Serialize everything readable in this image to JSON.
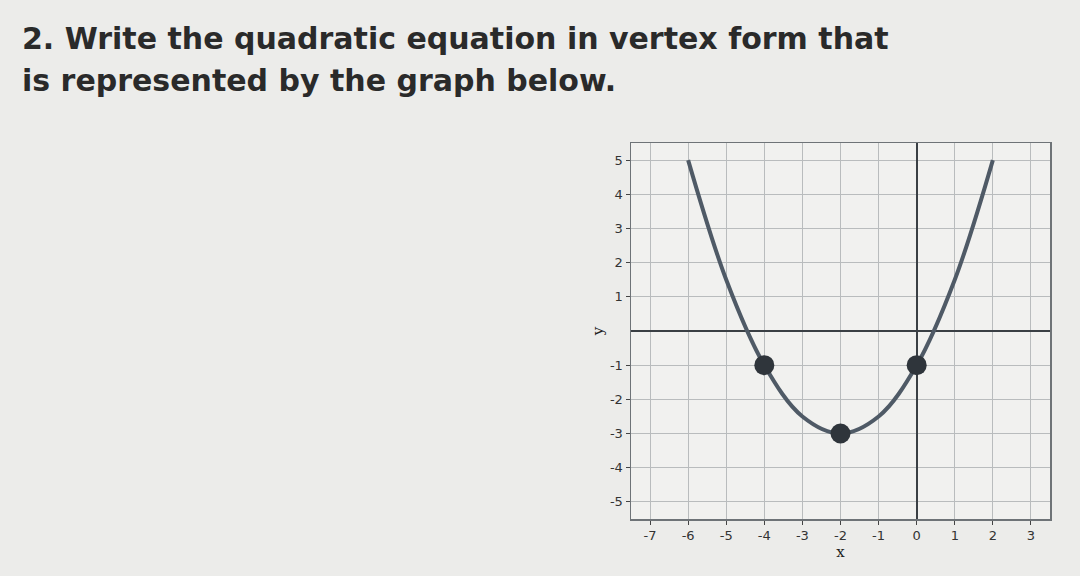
{
  "question": [
    "2. Write the quadratic equation in vertex form that",
    "is represented by the graph below."
  ],
  "chart_data": {
    "type": "line",
    "x_label": "x",
    "y_label": "y",
    "series": [
      {
        "type": "line",
        "color": "#4f5a66",
        "marker": "none",
        "line_style": "solid",
        "x": [
          -6,
          -5,
          -4,
          -3,
          -2,
          -1,
          0,
          1,
          2
        ],
        "values": [
          5,
          1.5,
          -1,
          -2.5,
          -3,
          -2.5,
          -1,
          1.5,
          5
        ]
      },
      {
        "type": "scatter",
        "color": "#2f353b",
        "marker": "circle",
        "x": [
          -4,
          -2,
          0
        ],
        "values": [
          -1,
          -3,
          -1
        ]
      }
    ],
    "xlim": [
      -7.5,
      3.5
    ],
    "xticks": [
      -7,
      -6,
      -5,
      -4,
      -3,
      -2,
      -1,
      0,
      1,
      2,
      3
    ],
    "ylim": [
      -5.5,
      5.5
    ],
    "yticks": [
      -5,
      -4,
      -3,
      -2,
      -1,
      1,
      2,
      3,
      4,
      5
    ],
    "grid": true
  }
}
